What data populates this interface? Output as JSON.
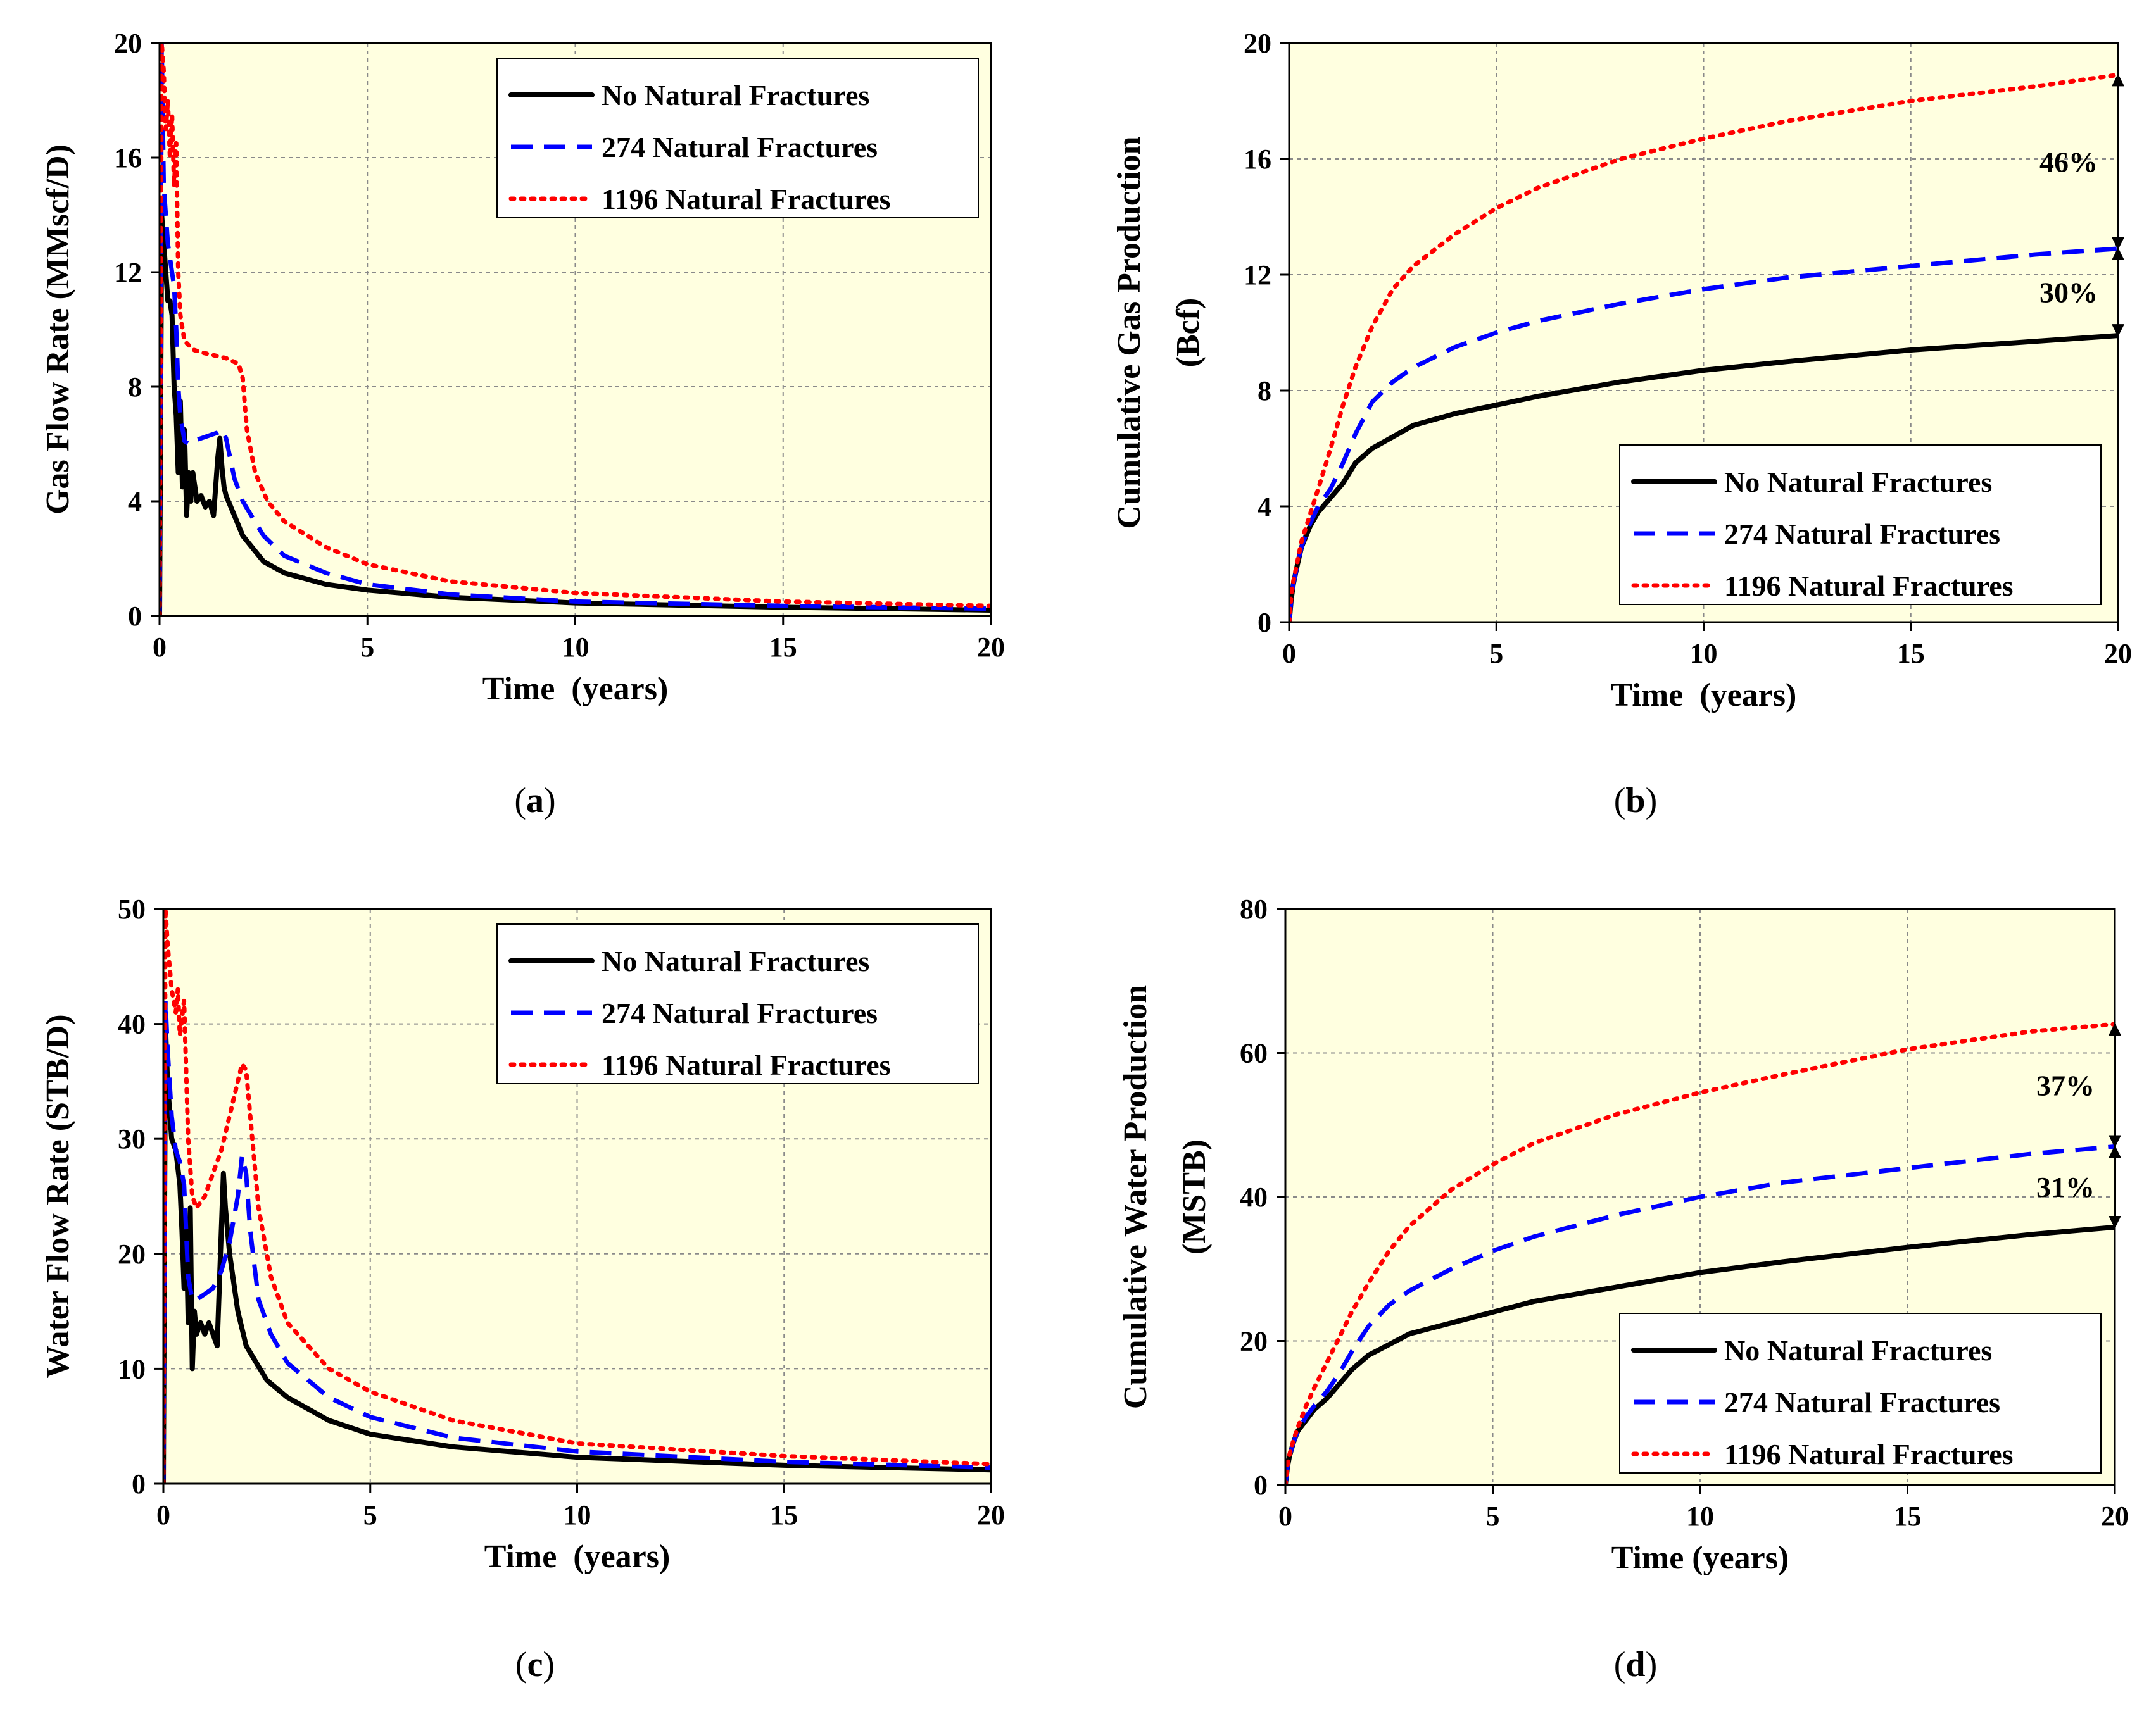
{
  "series_styles": [
    {
      "name": "No Natural Fractures",
      "color": "#000000",
      "dash": "",
      "width": 8
    },
    {
      "name": "274 Natural Fractures",
      "color": "#0000ff",
      "dash": "34 18",
      "width": 7
    },
    {
      "name": "1196 Natural Fractures",
      "color": "#ff0000",
      "dash": "5 11",
      "width": 7
    }
  ],
  "plot_background": "#ffffe0",
  "chart_data": [
    {
      "id": "a",
      "type": "line",
      "caption_letter": "a",
      "xlabel": "Time  (years)",
      "ylabel": "Gas Flow Rate (MMscf/D)",
      "xlim": [
        0,
        20
      ],
      "ylim": [
        0,
        20
      ],
      "xticks": [
        0,
        5,
        10,
        15,
        20
      ],
      "yticks": [
        0,
        4,
        8,
        12,
        16,
        20
      ],
      "grid": true,
      "legend_position": "top-right",
      "legend": [
        "No Natural Fractures",
        "274 Natural Fractures",
        "1196 Natural Fractures"
      ],
      "series": [
        {
          "name": "No Natural Fractures",
          "x": [
            0,
            0.05,
            0.1,
            0.2,
            0.25,
            0.3,
            0.35,
            0.4,
            0.45,
            0.5,
            0.55,
            0.6,
            0.65,
            0.7,
            0.75,
            0.8,
            0.9,
            1.0,
            1.1,
            1.2,
            1.3,
            1.4,
            1.45,
            1.5,
            1.55,
            1.6,
            1.8,
            2.0,
            2.5,
            3,
            4,
            5,
            7,
            10,
            15,
            20
          ],
          "y": [
            0,
            14,
            13,
            11,
            11,
            10.5,
            8,
            7,
            5,
            7.5,
            4.5,
            6.5,
            3.5,
            5,
            4,
            5,
            4,
            4.2,
            3.8,
            4,
            3.5,
            5.5,
            6.2,
            5.2,
            4.5,
            4.2,
            3.5,
            2.8,
            1.9,
            1.5,
            1.1,
            0.9,
            0.65,
            0.45,
            0.3,
            0.2
          ]
        },
        {
          "name": "274 Natural Fractures",
          "x": [
            0,
            0.05,
            0.1,
            0.2,
            0.3,
            0.35,
            0.4,
            0.45,
            0.5,
            0.6,
            0.7,
            0.8,
            1.0,
            1.2,
            1.4,
            1.5,
            1.6,
            1.7,
            1.8,
            2.0,
            2.5,
            3,
            4,
            5,
            7,
            10,
            15,
            20
          ],
          "y": [
            0,
            20,
            15,
            13,
            12,
            11.5,
            10,
            8,
            7,
            6.1,
            6.0,
            6.1,
            6.2,
            6.3,
            6.4,
            6.5,
            6.2,
            5.5,
            4.8,
            4.0,
            2.8,
            2.1,
            1.5,
            1.1,
            0.75,
            0.5,
            0.35,
            0.25
          ]
        },
        {
          "name": "1196 Natural Fractures",
          "x": [
            0,
            0.05,
            0.1,
            0.15,
            0.2,
            0.25,
            0.3,
            0.35,
            0.4,
            0.45,
            0.5,
            0.6,
            0.8,
            1.0,
            1.3,
            1.6,
            1.9,
            2.0,
            2.1,
            2.3,
            2.6,
            3,
            4,
            5,
            7,
            10,
            15,
            20
          ],
          "y": [
            0,
            20,
            19,
            17,
            18,
            16,
            17.5,
            15,
            16.5,
            12,
            10.5,
            9.6,
            9.3,
            9.2,
            9.1,
            9.0,
            8.8,
            8.3,
            6.5,
            5.0,
            4.0,
            3.3,
            2.4,
            1.8,
            1.2,
            0.8,
            0.5,
            0.35
          ]
        }
      ],
      "annotations": []
    },
    {
      "id": "b",
      "type": "line",
      "caption_letter": "b",
      "xlabel": "Time  (years)",
      "ylabel_lines": [
        "Cumulative Gas Production",
        "(Bcf)"
      ],
      "xlim": [
        0,
        20
      ],
      "ylim": [
        0,
        20
      ],
      "xticks": [
        0,
        5,
        10,
        15,
        20
      ],
      "yticks": [
        0,
        4,
        8,
        12,
        16,
        20
      ],
      "grid": true,
      "legend_position": "bottom-right",
      "legend": [
        "No Natural Fractures",
        "274 Natural Fractures",
        "1196 Natural Fractures"
      ],
      "series": [
        {
          "name": "No Natural Fractures",
          "x": [
            0,
            0.05,
            0.1,
            0.2,
            0.3,
            0.5,
            0.7,
            1.0,
            1.3,
            1.6,
            2,
            2.5,
            3,
            4,
            5,
            6,
            8,
            10,
            12,
            15,
            18,
            20
          ],
          "y": [
            0,
            0.8,
            1.3,
            2.0,
            2.6,
            3.3,
            3.8,
            4.3,
            4.8,
            5.5,
            6.0,
            6.4,
            6.8,
            7.2,
            7.5,
            7.8,
            8.3,
            8.7,
            9.0,
            9.4,
            9.7,
            9.9
          ]
        },
        {
          "name": "274 Natural Fractures",
          "x": [
            0,
            0.05,
            0.1,
            0.2,
            0.3,
            0.5,
            0.7,
            1.0,
            1.3,
            1.6,
            2,
            2.5,
            3,
            4,
            5,
            6,
            8,
            10,
            12,
            15,
            18,
            20
          ],
          "y": [
            0,
            0.8,
            1.3,
            2.0,
            2.6,
            3.4,
            4.0,
            4.6,
            5.5,
            6.5,
            7.6,
            8.3,
            8.8,
            9.5,
            10.0,
            10.4,
            11.0,
            11.5,
            11.9,
            12.3,
            12.7,
            12.9
          ]
        },
        {
          "name": "1196 Natural Fractures",
          "x": [
            0,
            0.05,
            0.1,
            0.2,
            0.3,
            0.5,
            0.7,
            1.0,
            1.3,
            1.6,
            2,
            2.5,
            3,
            4,
            5,
            6,
            8,
            10,
            12,
            15,
            18,
            20
          ],
          "y": [
            0,
            0.9,
            1.4,
            2.1,
            2.8,
            3.7,
            4.6,
            6.0,
            7.5,
            8.8,
            10.2,
            11.5,
            12.3,
            13.4,
            14.3,
            15.0,
            16.0,
            16.7,
            17.3,
            18.0,
            18.5,
            18.9
          ]
        }
      ],
      "annotations": [
        {
          "label": "46%",
          "x": 20,
          "y_from": 12.9,
          "y_to": 18.9
        },
        {
          "label": "30%",
          "x": 20,
          "y_from": 9.9,
          "y_to": 12.9
        }
      ]
    },
    {
      "id": "c",
      "type": "line",
      "caption_letter": "c",
      "xlabel": "Time  (years)",
      "ylabel": "Water Flow Rate (STB/D)",
      "xlim": [
        0,
        20
      ],
      "ylim": [
        0,
        50
      ],
      "xticks": [
        0,
        5,
        10,
        15,
        20
      ],
      "yticks": [
        0,
        10,
        20,
        30,
        40,
        50
      ],
      "grid": true,
      "legend_position": "top-right",
      "legend": [
        "No Natural Fractures",
        "274 Natural Fractures",
        "1196 Natural Fractures"
      ],
      "series": [
        {
          "name": "No Natural Fractures",
          "x": [
            0,
            0.05,
            0.1,
            0.2,
            0.3,
            0.4,
            0.45,
            0.5,
            0.55,
            0.6,
            0.65,
            0.7,
            0.75,
            0.8,
            0.9,
            1.0,
            1.1,
            1.2,
            1.3,
            1.4,
            1.45,
            1.5,
            1.6,
            1.8,
            2.0,
            2.5,
            3,
            4,
            5,
            7,
            10,
            15,
            20
          ],
          "y": [
            0,
            40,
            35,
            30,
            29,
            26,
            22,
            17,
            23,
            14,
            24,
            10,
            15,
            13,
            14,
            13,
            14,
            13,
            12,
            22,
            27,
            24,
            20,
            15,
            12,
            9,
            7.5,
            5.5,
            4.3,
            3.2,
            2.3,
            1.6,
            1.2
          ]
        },
        {
          "name": "274 Natural Fractures",
          "x": [
            0,
            0.05,
            0.1,
            0.2,
            0.3,
            0.4,
            0.5,
            0.6,
            0.7,
            0.8,
            1.0,
            1.2,
            1.4,
            1.6,
            1.8,
            1.9,
            2.0,
            2.1,
            2.3,
            2.6,
            3,
            4,
            5,
            7,
            10,
            15,
            20
          ],
          "y": [
            0,
            42,
            38,
            32,
            29,
            28,
            26,
            18,
            16,
            16,
            16.5,
            17,
            18.5,
            21,
            25,
            28.5,
            27,
            22,
            16,
            13,
            10.5,
            7.5,
            5.8,
            4,
            2.8,
            1.9,
            1.4
          ]
        },
        {
          "name": "1196 Natural Fractures",
          "x": [
            0,
            0.05,
            0.1,
            0.2,
            0.3,
            0.35,
            0.4,
            0.5,
            0.6,
            0.7,
            0.8,
            1.0,
            1.2,
            1.4,
            1.6,
            1.8,
            1.9,
            2.0,
            2.1,
            2.3,
            2.6,
            3,
            4,
            5,
            7,
            10,
            15,
            20
          ],
          "y": [
            0,
            50,
            47,
            43,
            41,
            43,
            39,
            42,
            30,
            25,
            24,
            25,
            27,
            29,
            32,
            35,
            36.5,
            36,
            32,
            24,
            18,
            14,
            10,
            8,
            5.5,
            3.5,
            2.4,
            1.7
          ]
        }
      ],
      "annotations": []
    },
    {
      "id": "d",
      "type": "line",
      "caption_letter": "d",
      "xlabel": "Time (years)",
      "ylabel_lines": [
        "Cumulative Water Production",
        "(MSTB)"
      ],
      "xlim": [
        0,
        20
      ],
      "ylim": [
        0,
        80
      ],
      "xticks": [
        0,
        5,
        10,
        15,
        20
      ],
      "yticks": [
        0,
        20,
        40,
        60,
        80
      ],
      "grid": true,
      "legend_position": "bottom-right",
      "legend": [
        "No Natural Fractures",
        "274 Natural Fractures",
        "1196 Natural Fractures"
      ],
      "series": [
        {
          "name": "No Natural Fractures",
          "x": [
            0,
            0.05,
            0.1,
            0.2,
            0.3,
            0.5,
            0.7,
            1.0,
            1.3,
            1.6,
            2,
            2.5,
            3,
            4,
            5,
            6,
            8,
            10,
            12,
            15,
            18,
            20
          ],
          "y": [
            0,
            2.5,
            4,
            6,
            7.5,
            9,
            10.5,
            12,
            14,
            16,
            18,
            19.5,
            21,
            22.5,
            24,
            25.5,
            27.5,
            29.5,
            31,
            33,
            34.8,
            35.8
          ]
        },
        {
          "name": "274 Natural Fractures",
          "x": [
            0,
            0.05,
            0.1,
            0.2,
            0.3,
            0.5,
            0.7,
            1.0,
            1.3,
            1.6,
            2,
            2.5,
            3,
            4,
            5,
            6,
            8,
            10,
            12,
            15,
            18,
            20
          ],
          "y": [
            0,
            2.5,
            4,
            6,
            7.5,
            9.5,
            11,
            13,
            15.5,
            18.5,
            22,
            25,
            27,
            30,
            32.5,
            34.5,
            37.5,
            40,
            42,
            44,
            46,
            47
          ]
        },
        {
          "name": "1196 Natural Fractures",
          "x": [
            0,
            0.05,
            0.1,
            0.2,
            0.3,
            0.5,
            0.7,
            1.0,
            1.3,
            1.6,
            2,
            2.5,
            3,
            4,
            5,
            6,
            8,
            10,
            12,
            15,
            18,
            20
          ],
          "y": [
            0,
            2.7,
            4.2,
            6.3,
            8,
            11,
            13.5,
            17,
            20.5,
            24,
            28,
            32.5,
            36,
            41,
            44.5,
            47.5,
            51.5,
            54.5,
            57,
            60.5,
            63,
            64
          ]
        }
      ],
      "annotations": [
        {
          "label": "37%",
          "x": 20,
          "y_from": 47,
          "y_to": 64
        },
        {
          "label": "31%",
          "x": 20,
          "y_from": 35.8,
          "y_to": 47
        }
      ]
    }
  ]
}
